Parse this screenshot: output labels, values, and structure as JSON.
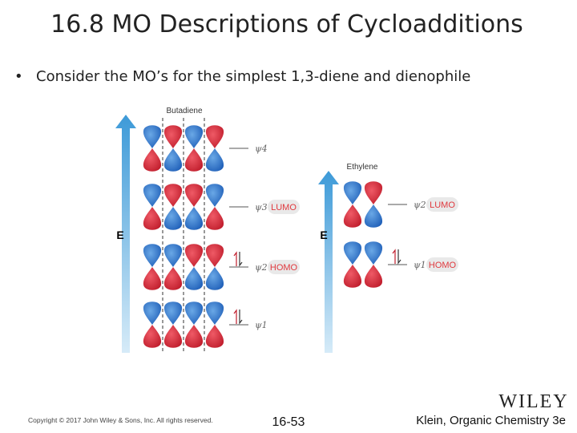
{
  "header": {
    "title": "16.8 MO Descriptions of Cycloadditions"
  },
  "bullet": "Consider the MO’s for the simplest 1,3-diene and dienophile",
  "diagram": {
    "butadiene": {
      "label": "Butadiene",
      "energy_label": "E",
      "levels": [
        {
          "psi": "ψ4"
        },
        {
          "psi": "ψ3",
          "tag": "LUMO"
        },
        {
          "psi": "ψ2",
          "tag": "HOMO"
        },
        {
          "psi": "ψ1"
        }
      ]
    },
    "ethylene": {
      "label": "Ethylene",
      "energy_label": "E",
      "levels": [
        {
          "psi": "ψ2",
          "tag": "LUMO"
        },
        {
          "psi": "ψ1",
          "tag": "HOMO"
        }
      ]
    }
  },
  "footer": {
    "copyright": "Copyright © 2017 John Wiley & Sons, Inc. All rights reserved.",
    "page": "16-53",
    "logo": "WILEY",
    "book": "Klein, Organic Chemistry 3e"
  }
}
